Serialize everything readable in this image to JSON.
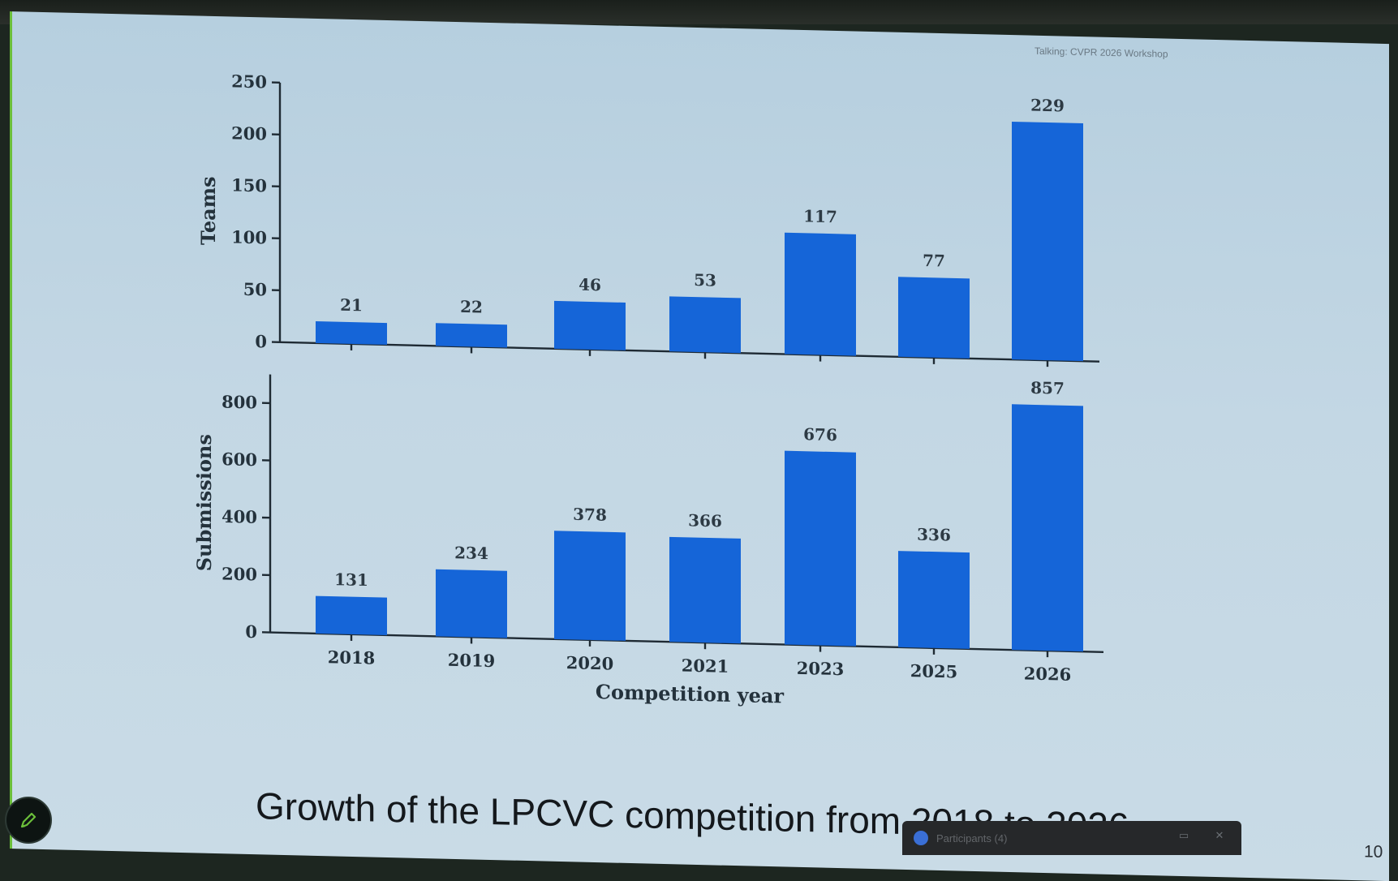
{
  "meeting": {
    "title": "Talking: CVPR 2026 Workshop"
  },
  "slide": {
    "caption": "Growth of the LPCVC competition from 2018 to 2026.",
    "page_number": "10"
  },
  "participants": {
    "label": "Participants (4)"
  },
  "colors": {
    "bar": "#1565d8",
    "slide_bg": "#c3d7e4",
    "pen_icon": "#6bbf3a"
  },
  "icons": {
    "pen": "pen-icon",
    "participants": "participants-icon"
  },
  "chart_data": [
    {
      "type": "bar",
      "categories": [
        "2018",
        "2019",
        "2020",
        "2021",
        "2023",
        "2025",
        "2026"
      ],
      "values": [
        21,
        22,
        46,
        53,
        117,
        77,
        229
      ],
      "ylabel": "Teams",
      "xlabel": "",
      "yticks": [
        0,
        50,
        100,
        150,
        200,
        250
      ],
      "ylim": [
        0,
        250
      ],
      "show_x_tick_labels": false
    },
    {
      "type": "bar",
      "categories": [
        "2018",
        "2019",
        "2020",
        "2021",
        "2023",
        "2025",
        "2026"
      ],
      "values": [
        131,
        234,
        378,
        366,
        676,
        336,
        857
      ],
      "ylabel": "Submissions",
      "xlabel": "Competition year",
      "yticks": [
        0,
        200,
        400,
        600,
        800
      ],
      "ylim": [
        0,
        900
      ],
      "show_x_tick_labels": true
    }
  ]
}
